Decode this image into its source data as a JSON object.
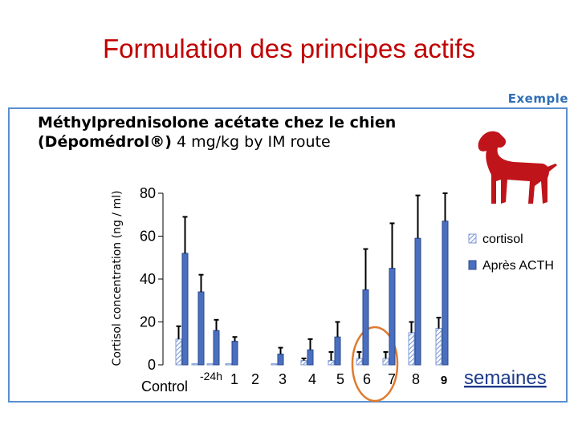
{
  "slide": {
    "title": "Formulation des principes actifs",
    "tag": "Exemple",
    "subtitle_line1": "Méthylprednisolone acétate chez le chien",
    "subtitle_line2_bold": "(Dépomédrol®)",
    "subtitle_line2_rest": " 4 mg/kg by IM route"
  },
  "colors": {
    "title": "#c00000",
    "tag": "#2f6fb5",
    "panel_border": "#5b8fd0",
    "bar_acth": "#4a6fc0",
    "bar_cortisol_hatch": "#7d9ad6",
    "dog": "#c0141b",
    "circle": "#e07a2e"
  },
  "chart_data": {
    "type": "bar",
    "ylabel": "Cortisol concentration (ng / ml)",
    "ylim": [
      0,
      80
    ],
    "yticks": [
      0,
      20,
      40,
      60,
      80
    ],
    "xlabel": "semaines",
    "categories": [
      "Control",
      "-24h",
      "1",
      "2",
      "3",
      "4",
      "5",
      "6",
      "7",
      "8",
      "9"
    ],
    "series": [
      {
        "name": "cortisol",
        "pattern": "hatched",
        "values": [
          12,
          0.5,
          0.5,
          0.5,
          0.5,
          2,
          2,
          3,
          3,
          15,
          17
        ],
        "errors": [
          6,
          0,
          0,
          0,
          0,
          1,
          4,
          3,
          3,
          5,
          5
        ]
      },
      {
        "name": "Après ACTH",
        "pattern": "solid",
        "values": [
          52,
          34,
          16,
          11,
          5,
          7,
          13,
          35,
          45,
          59,
          67
        ],
        "errors": [
          17,
          8,
          5,
          2,
          3,
          5,
          7,
          19,
          21,
          20,
          13
        ]
      }
    ],
    "legend": [
      "cortisol",
      "Après ACTH"
    ],
    "legend_position": "right",
    "highlight_category": "6",
    "grid": false
  }
}
